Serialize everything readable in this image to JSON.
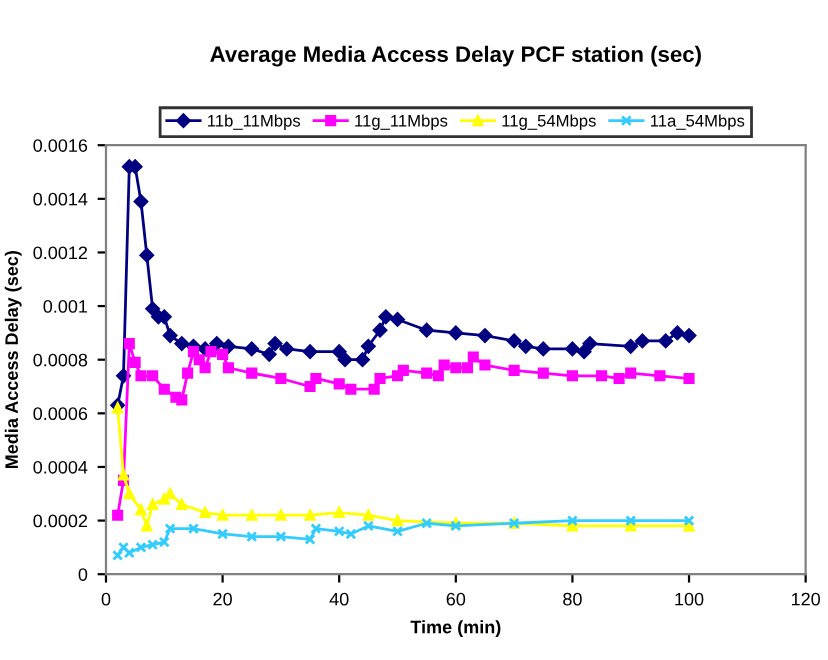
{
  "chart_data": {
    "type": "line",
    "title": "Average Media Access Delay PCF station (sec)",
    "xlabel": "Time (min)",
    "ylabel": "Media Access Delay (sec)",
    "xlim": [
      0,
      120
    ],
    "xticks": [
      0,
      20,
      40,
      60,
      80,
      100,
      120
    ],
    "ylim": [
      0,
      0.0016
    ],
    "yticks": [
      0,
      0.0002,
      0.0004,
      0.0006,
      0.0008,
      0.001,
      0.0012,
      0.0014,
      0.0016
    ],
    "grid": false,
    "legend": "top",
    "series": [
      {
        "name": "11b_11Mbps",
        "color": "#000080",
        "marker": "diamond",
        "x": [
          2,
          3,
          4,
          5,
          6,
          7,
          8,
          9,
          10,
          11,
          13,
          15,
          17,
          19,
          21,
          25,
          28,
          29,
          31,
          35,
          40,
          41,
          44,
          45,
          47,
          48,
          50,
          55,
          60,
          65,
          70,
          72,
          75,
          80,
          82,
          83,
          90,
          92,
          96,
          98,
          100
        ],
        "values": [
          0.00063,
          0.00074,
          0.00152,
          0.00152,
          0.00139,
          0.00119,
          0.00099,
          0.00096,
          0.00096,
          0.00089,
          0.00086,
          0.00085,
          0.00084,
          0.00086,
          0.00085,
          0.00084,
          0.00082,
          0.00086,
          0.00084,
          0.00083,
          0.00083,
          0.0008,
          0.0008,
          0.00085,
          0.00091,
          0.00096,
          0.00095,
          0.00091,
          0.0009,
          0.00089,
          0.00087,
          0.00085,
          0.00084,
          0.00084,
          0.00083,
          0.00086,
          0.00085,
          0.00087,
          0.00087,
          0.0009,
          0.00089
        ]
      },
      {
        "name": "11g_11Mbps",
        "color": "#ff00ff",
        "marker": "square",
        "x": [
          2,
          3,
          4,
          5,
          6,
          8,
          10,
          12,
          13,
          14,
          15,
          16,
          17,
          18,
          20,
          21,
          25,
          30,
          35,
          36,
          40,
          42,
          46,
          47,
          50,
          51,
          55,
          57,
          58,
          60,
          62,
          63,
          65,
          70,
          75,
          80,
          85,
          88,
          90,
          95,
          100
        ],
        "values": [
          0.00022,
          0.00035,
          0.00086,
          0.00079,
          0.00074,
          0.00074,
          0.00069,
          0.00066,
          0.00065,
          0.00075,
          0.00083,
          0.0008,
          0.00077,
          0.00083,
          0.00082,
          0.00077,
          0.00075,
          0.00073,
          0.0007,
          0.00073,
          0.00071,
          0.00069,
          0.00069,
          0.00073,
          0.00074,
          0.00076,
          0.00075,
          0.00074,
          0.00078,
          0.00077,
          0.00077,
          0.00081,
          0.00078,
          0.00076,
          0.00075,
          0.00074,
          0.00074,
          0.00073,
          0.00075,
          0.00074,
          0.00073
        ]
      },
      {
        "name": "11g_54Mbps",
        "color": "#ffff00",
        "marker": "triangle",
        "x": [
          2,
          3,
          4,
          6,
          7,
          8,
          10,
          11,
          13,
          17,
          20,
          25,
          30,
          35,
          40,
          45,
          50,
          60,
          70,
          80,
          90,
          100
        ],
        "values": [
          0.00062,
          0.00037,
          0.0003,
          0.00024,
          0.00018,
          0.00026,
          0.00028,
          0.0003,
          0.00026,
          0.00023,
          0.00022,
          0.00022,
          0.00022,
          0.00022,
          0.00023,
          0.00022,
          0.0002,
          0.00019,
          0.00019,
          0.00018,
          0.00018,
          0.00018
        ]
      },
      {
        "name": "11a_54Mbps",
        "color": "#33ccff",
        "marker": "cross",
        "x": [
          2,
          3,
          4,
          6,
          8,
          10,
          11,
          15,
          20,
          25,
          30,
          35,
          36,
          40,
          42,
          45,
          50,
          55,
          60,
          70,
          80,
          90,
          100
        ],
        "values": [
          7e-05,
          0.0001,
          8e-05,
          0.0001,
          0.00011,
          0.00012,
          0.00017,
          0.00017,
          0.00015,
          0.00014,
          0.00014,
          0.00013,
          0.00017,
          0.00016,
          0.00015,
          0.00018,
          0.00016,
          0.00019,
          0.00018,
          0.00019,
          0.0002,
          0.0002,
          0.0002
        ]
      }
    ]
  }
}
